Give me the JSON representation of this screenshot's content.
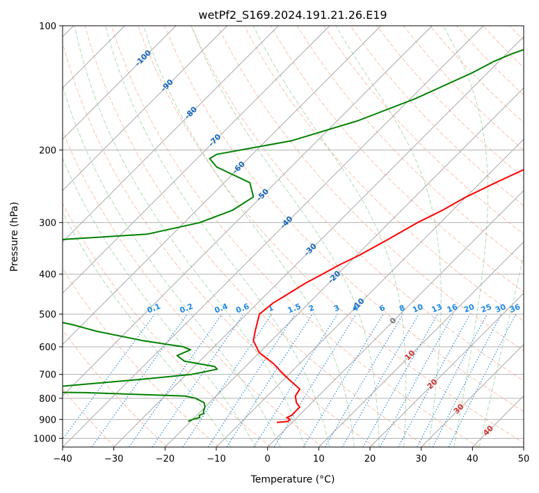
{
  "chart_data": {
    "type": "line",
    "subtype": "skew-T log-p diagram",
    "title": "wetPf2_S169.2024.191.21.26.E19",
    "xlabel": "Temperature (°C)",
    "ylabel": "Pressure (hPa)",
    "xlim": [
      -40,
      50
    ],
    "ylim": [
      1050,
      100
    ],
    "y_scale": "log",
    "grid": true,
    "x_ticks": [
      -40,
      -30,
      -20,
      -10,
      0,
      10,
      20,
      30,
      40,
      50
    ],
    "x_tick_labels": [
      "−40",
      "−30",
      "−20",
      "−10",
      "0",
      "10",
      "20",
      "30",
      "40",
      "50"
    ],
    "y_ticks": [
      100,
      200,
      300,
      400,
      500,
      600,
      700,
      800,
      900,
      1000
    ],
    "y_tick_labels": [
      "100",
      "200",
      "300",
      "400",
      "500",
      "600",
      "700",
      "800",
      "900",
      "1000"
    ],
    "isotherm_labels": [
      {
        "t": -100,
        "text": "-100"
      },
      {
        "t": -90,
        "text": "-90"
      },
      {
        "t": -80,
        "text": "-80"
      },
      {
        "t": -70,
        "text": "-70"
      },
      {
        "t": -60,
        "text": "-60"
      },
      {
        "t": -50,
        "text": "-50"
      },
      {
        "t": -40,
        "text": "-40"
      },
      {
        "t": -30,
        "text": "-30"
      },
      {
        "t": -20,
        "text": "-20"
      },
      {
        "t": -10,
        "text": "-10"
      },
      {
        "t": 0,
        "text": "0"
      },
      {
        "t": 10,
        "text": "10"
      },
      {
        "t": 20,
        "text": "20"
      },
      {
        "t": 30,
        "text": "30"
      },
      {
        "t": 40,
        "text": "40"
      }
    ],
    "mixing_ratio_labels": [
      "0.1",
      "0.2",
      "0.4",
      "0.6",
      "1",
      "1.5",
      "2",
      "3",
      "4",
      "6",
      "8",
      "10",
      "13",
      "16",
      "20",
      "25",
      "30",
      "36"
    ],
    "mixing_ratios": [
      0.1,
      0.2,
      0.4,
      0.6,
      1,
      1.5,
      2,
      3,
      4,
      6,
      8,
      10,
      13,
      16,
      20,
      25,
      30,
      36
    ],
    "series": [
      {
        "color": "#ff0000",
        "points": [
          [
            3.0,
            100
          ],
          [
            3.2,
            110
          ],
          [
            3.2,
            120
          ],
          [
            3.0,
            130
          ],
          [
            2.0,
            145
          ],
          [
            0.0,
            170
          ],
          [
            -1.5,
            200
          ],
          [
            -3.5,
            220
          ],
          [
            -7.0,
            240
          ],
          [
            -10.0,
            260
          ],
          [
            -12.0,
            280
          ],
          [
            -14.5,
            300
          ],
          [
            -17.0,
            330
          ],
          [
            -19.5,
            360
          ],
          [
            -21.5,
            380
          ],
          [
            -23.0,
            400
          ],
          [
            -24.5,
            420
          ],
          [
            -26.0,
            450
          ],
          [
            -27.0,
            470
          ],
          [
            -27.5,
            500
          ],
          [
            -25.0,
            550
          ],
          [
            -23.5,
            580
          ],
          [
            -20.0,
            620
          ],
          [
            -15.0,
            660
          ],
          [
            -12.0,
            690
          ],
          [
            -9.0,
            720
          ],
          [
            -5.0,
            760
          ],
          [
            -4.5,
            790
          ],
          [
            -3.0,
            820
          ],
          [
            -1.5,
            840
          ],
          [
            -1.5,
            880
          ],
          [
            -2.0,
            890
          ],
          [
            -1.0,
            900
          ],
          [
            -1.0,
            910
          ],
          [
            -3.0,
            915
          ]
        ]
      },
      {
        "color": "#008000",
        "points": [
          [
            -17.0,
            100
          ],
          [
            -25.0,
            110
          ],
          [
            -29.0,
            117
          ],
          [
            -31.0,
            122
          ],
          [
            -33.0,
            130
          ],
          [
            -39.0,
            150
          ],
          [
            -46.0,
            170
          ],
          [
            -55.0,
            190
          ],
          [
            -67.0,
            205
          ],
          [
            -67.5,
            210
          ],
          [
            -64.5,
            220
          ],
          [
            -55.0,
            240
          ],
          [
            -51.5,
            260
          ],
          [
            -53.0,
            280
          ],
          [
            -57.0,
            300
          ],
          [
            -65.0,
            320
          ],
          [
            -81.0,
            330
          ],
          [
            -89.0,
            350
          ],
          [
            -98.0,
            380
          ],
          [
            -97.0,
            390
          ],
          [
            -95.0,
            410
          ],
          [
            -94.0,
            420
          ],
          [
            -83.0,
            430
          ],
          [
            -79.0,
            440
          ],
          [
            -80.5,
            445
          ],
          [
            -93.0,
            450
          ],
          [
            -96.0,
            455
          ],
          [
            -94.0,
            460
          ],
          [
            -80.0,
            470
          ],
          [
            -73.0,
            480
          ],
          [
            -71.0,
            490
          ],
          [
            -71.0,
            500
          ],
          [
            -70.0,
            510
          ],
          [
            -62.0,
            530
          ],
          [
            -56.0,
            550
          ],
          [
            -45.0,
            580
          ],
          [
            -36.0,
            600
          ],
          [
            -34.0,
            610
          ],
          [
            -35.5,
            630
          ],
          [
            -33.0,
            650
          ],
          [
            -26.0,
            670
          ],
          [
            -25.0,
            680
          ],
          [
            -29.0,
            700
          ],
          [
            -38.0,
            720
          ],
          [
            -53.0,
            750
          ],
          [
            -67.0,
            760
          ],
          [
            -64.0,
            770
          ],
          [
            -46.0,
            775
          ],
          [
            -26.0,
            790
          ],
          [
            -23.5,
            800
          ],
          [
            -21.0,
            820
          ],
          [
            -20.0,
            840
          ],
          [
            -19.5,
            860
          ],
          [
            -19.0,
            870
          ],
          [
            -19.5,
            880
          ],
          [
            -19.0,
            890
          ],
          [
            -20.0,
            900
          ],
          [
            -20.5,
            910
          ]
        ]
      }
    ]
  }
}
